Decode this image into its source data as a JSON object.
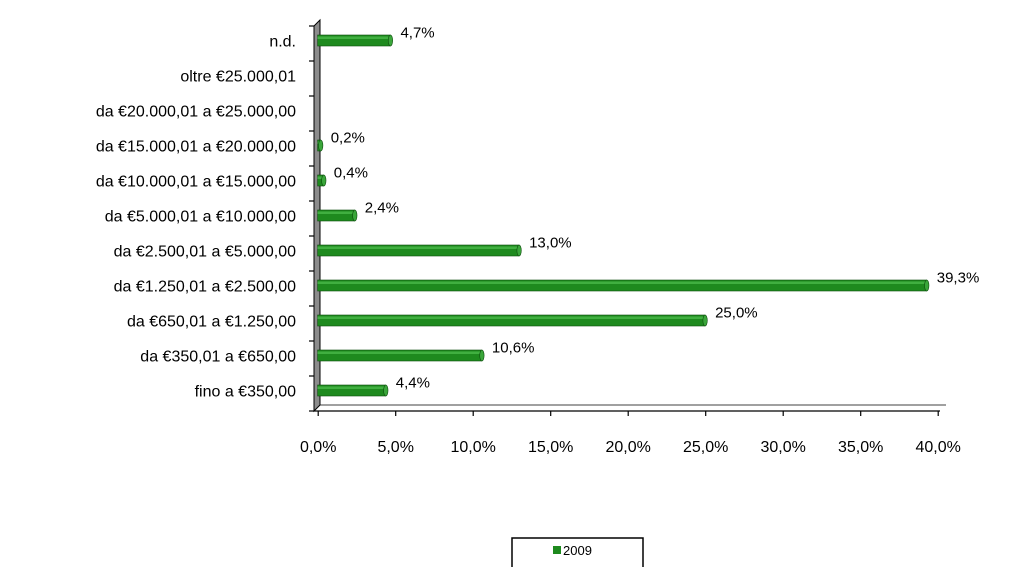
{
  "chart_data": {
    "type": "bar",
    "orientation": "horizontal",
    "title": "",
    "xlabel": "",
    "ylabel": "",
    "categories": [
      "fino a €350,00",
      "da €350,01 a €650,00",
      "da €650,01 a €1.250,00",
      "da €1.250,01 a €2.500,00",
      "da €2.500,01 a €5.000,00",
      "da €5.000,01 a €10.000,00",
      "da  €10.000,01 a €15.000,00",
      "da  €15.000,01 a €20.000,00",
      "da  €20.000,01 a €25.000,00",
      "oltre €25.000,01",
      "n.d."
    ],
    "series": [
      {
        "name": "2009",
        "color": "#1e8a1e",
        "values": [
          4.4,
          10.6,
          25.0,
          39.3,
          13.0,
          2.4,
          0.4,
          0.2,
          null,
          null,
          4.7
        ],
        "labels": [
          "4,4%",
          "10,6%",
          "25,0%",
          "39,3%",
          "13,0%",
          "2,4%",
          "0,4%",
          "0,2%",
          "",
          "",
          "4,7%"
        ]
      }
    ],
    "xlim": [
      0,
      40
    ],
    "ticks": [
      0,
      5,
      10,
      15,
      20,
      25,
      30,
      35,
      40
    ],
    "tick_labels": [
      "0,0%",
      "5,0%",
      "10,0%",
      "15,0%",
      "20,0%",
      "25,0%",
      "30,0%",
      "35,0%",
      "40,0%"
    ],
    "grid": false,
    "legend_position": "bottom-center"
  }
}
